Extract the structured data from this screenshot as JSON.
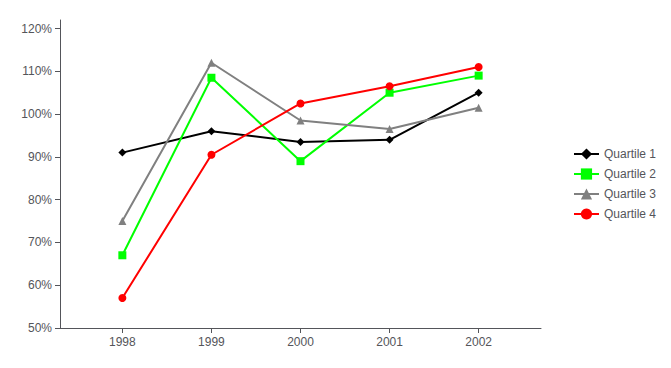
{
  "chart_data": {
    "type": "line",
    "x": [
      1998,
      1999,
      2000,
      2001,
      2002
    ],
    "series": [
      {
        "name": "Quartile 1",
        "color": "#000000",
        "marker": "diamond",
        "values": [
          0.91,
          0.96,
          0.935,
          0.94,
          1.05
        ]
      },
      {
        "name": "Quartile 2",
        "color": "#00ff00",
        "marker": "square",
        "values": [
          0.67,
          1.085,
          0.89,
          1.05,
          1.09
        ]
      },
      {
        "name": "Quartile 3",
        "color": "#808080",
        "marker": "triangle",
        "values": [
          0.75,
          1.12,
          0.985,
          0.965,
          1.015
        ]
      },
      {
        "name": "Quartile 4",
        "color": "#ff0000",
        "marker": "circle",
        "values": [
          0.57,
          0.905,
          1.025,
          1.065,
          1.11
        ]
      }
    ],
    "xlim": [
      1997.3,
      2002.7
    ],
    "xticks": [
      1998,
      1999,
      2000,
      2001,
      2002
    ],
    "ylim": [
      0.5,
      1.22
    ],
    "yticks": [
      {
        "value": 0.5,
        "label": "50%"
      },
      {
        "value": 0.6,
        "label": "60%"
      },
      {
        "value": 0.7,
        "label": "70%"
      },
      {
        "value": 0.8,
        "label": "80%"
      },
      {
        "value": 0.9,
        "label": "90%"
      },
      {
        "value": 1.0,
        "label": "100%"
      },
      {
        "value": 1.1,
        "label": "110%"
      },
      {
        "value": 1.2,
        "label": "120%"
      }
    ],
    "grid": false,
    "legend": "right"
  }
}
